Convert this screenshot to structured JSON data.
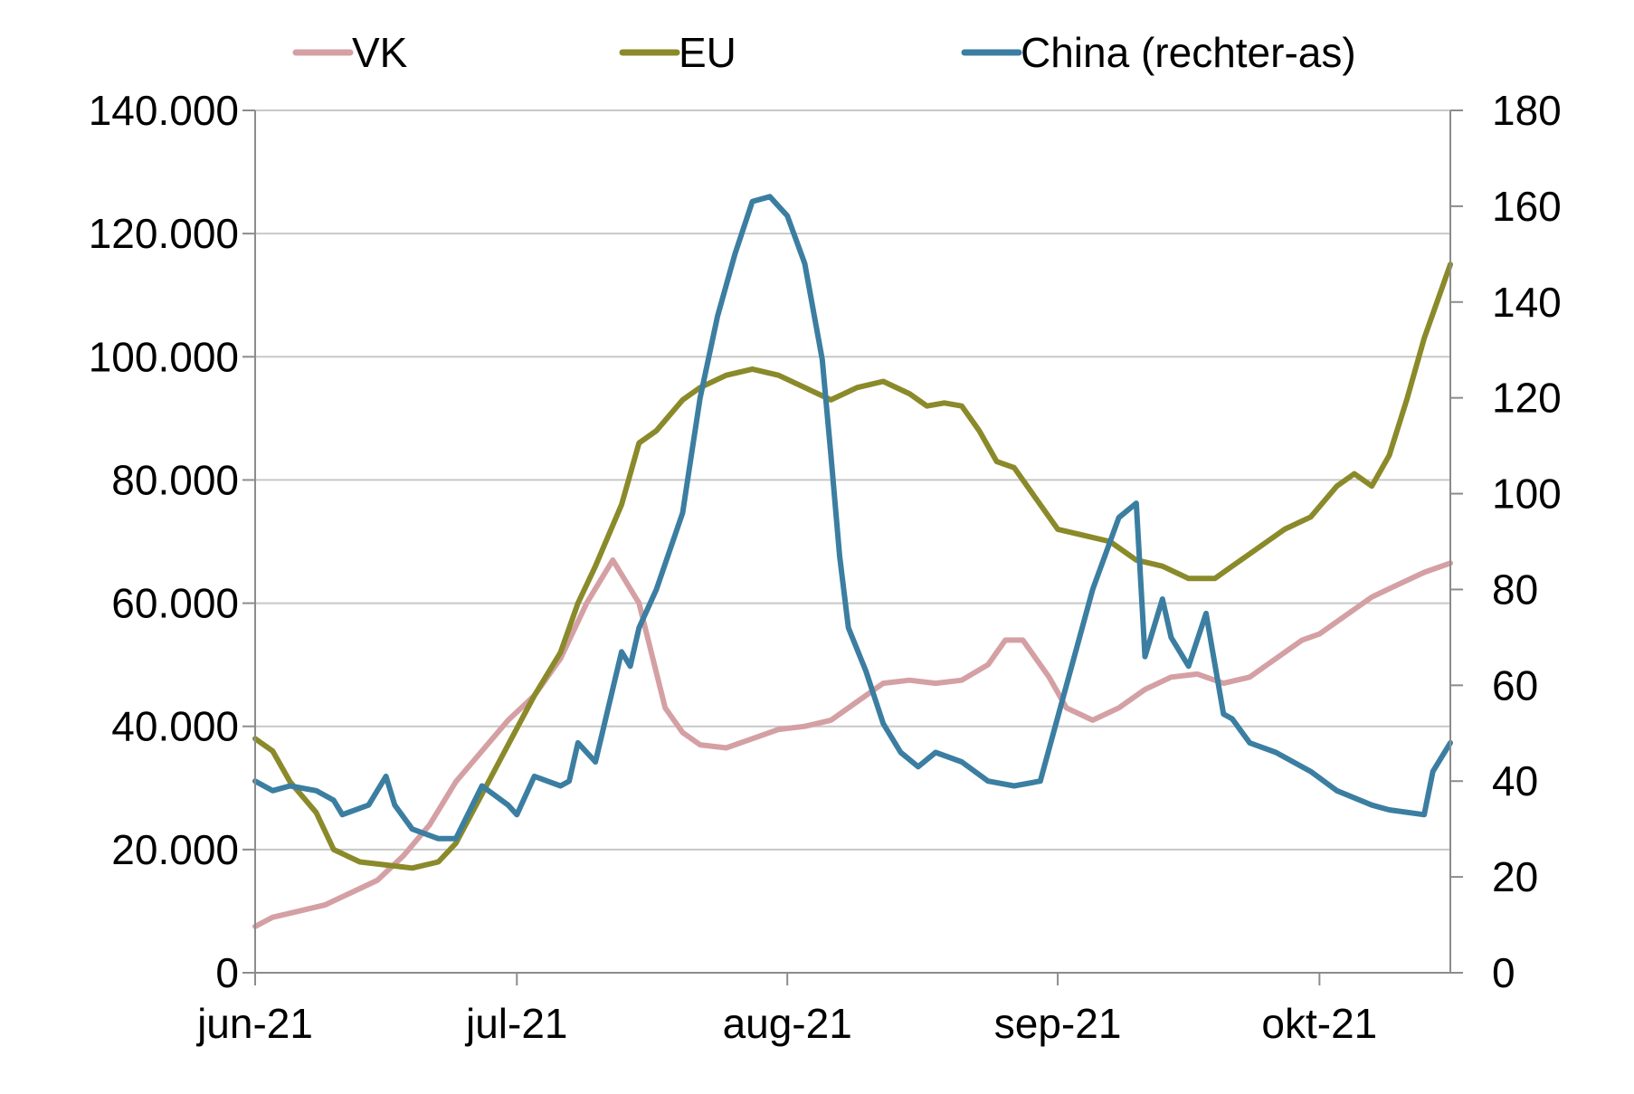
{
  "chart_data": {
    "type": "line",
    "title": "",
    "x_ticks": [
      "jun-21",
      "jul-21",
      "aug-21",
      "sep-21",
      "okt-21"
    ],
    "x_tick_dates": [
      "2021-06-01",
      "2021-07-01",
      "2021-08-01",
      "2021-09-01",
      "2021-10-01"
    ],
    "x_range": [
      "2021-06-01",
      "2021-10-16"
    ],
    "y_left": {
      "ylim": [
        0,
        140000
      ],
      "ticks": [
        0,
        20000,
        40000,
        60000,
        80000,
        100000,
        120000,
        140000
      ],
      "tick_labels": [
        "0",
        "20.000",
        "40.000",
        "60.000",
        "80.000",
        "100.000",
        "120.000",
        "140.000"
      ]
    },
    "y_right": {
      "ylim": [
        0,
        180
      ],
      "ticks": [
        0,
        20,
        40,
        60,
        80,
        100,
        120,
        140,
        160,
        180
      ],
      "tick_labels": [
        "0",
        "20",
        "40",
        "60",
        "80",
        "100",
        "120",
        "140",
        "160",
        "180"
      ]
    },
    "grid": "horizontal",
    "legend_position": "top",
    "series": [
      {
        "name": "VK",
        "axis": "left",
        "color": "#d4a0a4",
        "x": [
          "2021-06-01",
          "2021-06-03",
          "2021-06-06",
          "2021-06-09",
          "2021-06-12",
          "2021-06-15",
          "2021-06-18",
          "2021-06-21",
          "2021-06-24",
          "2021-06-27",
          "2021-06-30",
          "2021-07-03",
          "2021-07-06",
          "2021-07-09",
          "2021-07-12",
          "2021-07-15",
          "2021-07-18",
          "2021-07-20",
          "2021-07-22",
          "2021-07-25",
          "2021-07-28",
          "2021-07-31",
          "2021-08-03",
          "2021-08-06",
          "2021-08-09",
          "2021-08-12",
          "2021-08-15",
          "2021-08-18",
          "2021-08-21",
          "2021-08-24",
          "2021-08-26",
          "2021-08-28",
          "2021-08-31",
          "2021-09-02",
          "2021-09-05",
          "2021-09-08",
          "2021-09-11",
          "2021-09-14",
          "2021-09-17",
          "2021-09-20",
          "2021-09-23",
          "2021-09-26",
          "2021-09-29",
          "2021-10-01",
          "2021-10-04",
          "2021-10-07",
          "2021-10-10",
          "2021-10-13",
          "2021-10-16"
        ],
        "values": [
          7500,
          9000,
          10000,
          11000,
          13000,
          15000,
          19000,
          24000,
          31000,
          36000,
          41000,
          45000,
          51000,
          60000,
          67000,
          60000,
          43000,
          39000,
          37000,
          36500,
          38000,
          39500,
          40000,
          41000,
          44000,
          47000,
          47500,
          47000,
          47500,
          50000,
          54000,
          54000,
          48000,
          43000,
          41000,
          43000,
          46000,
          48000,
          48500,
          47000,
          48000,
          51000,
          54000,
          55000,
          58000,
          61000,
          63000,
          65000,
          66500
        ]
      },
      {
        "name": "EU",
        "axis": "left",
        "color": "#8a8a2a",
        "x": [
          "2021-06-01",
          "2021-06-03",
          "2021-06-05",
          "2021-06-08",
          "2021-06-10",
          "2021-06-13",
          "2021-06-16",
          "2021-06-19",
          "2021-06-22",
          "2021-06-24",
          "2021-06-27",
          "2021-06-30",
          "2021-07-03",
          "2021-07-06",
          "2021-07-08",
          "2021-07-10",
          "2021-07-13",
          "2021-07-15",
          "2021-07-17",
          "2021-07-20",
          "2021-07-22",
          "2021-07-25",
          "2021-07-28",
          "2021-07-31",
          "2021-08-03",
          "2021-08-06",
          "2021-08-09",
          "2021-08-12",
          "2021-08-15",
          "2021-08-17",
          "2021-08-19",
          "2021-08-21",
          "2021-08-23",
          "2021-08-25",
          "2021-08-27",
          "2021-08-30",
          "2021-09-01",
          "2021-09-04",
          "2021-09-07",
          "2021-09-10",
          "2021-09-13",
          "2021-09-16",
          "2021-09-19",
          "2021-09-21",
          "2021-09-24",
          "2021-09-27",
          "2021-09-30",
          "2021-10-03",
          "2021-10-05",
          "2021-10-07",
          "2021-10-09",
          "2021-10-11",
          "2021-10-13",
          "2021-10-16"
        ],
        "values": [
          38000,
          36000,
          31000,
          26000,
          20000,
          18000,
          17500,
          17000,
          18000,
          21000,
          29000,
          37000,
          45000,
          52000,
          60000,
          66000,
          76000,
          86000,
          88000,
          93000,
          95000,
          97000,
          98000,
          97000,
          95000,
          93000,
          95000,
          96000,
          94000,
          92000,
          92500,
          92000,
          88000,
          83000,
          82000,
          76000,
          72000,
          71000,
          70000,
          67000,
          66000,
          64000,
          64000,
          66000,
          69000,
          72000,
          74000,
          79000,
          81000,
          79000,
          84000,
          93000,
          103000,
          115000
        ]
      },
      {
        "name": "China (rechter-as)",
        "axis": "right",
        "color": "#3b7ea1",
        "x": [
          "2021-06-01",
          "2021-06-03",
          "2021-06-05",
          "2021-06-08",
          "2021-06-10",
          "2021-06-11",
          "2021-06-14",
          "2021-06-16",
          "2021-06-17",
          "2021-06-19",
          "2021-06-22",
          "2021-06-24",
          "2021-06-27",
          "2021-06-30",
          "2021-07-01",
          "2021-07-03",
          "2021-07-06",
          "2021-07-07",
          "2021-07-08",
          "2021-07-10",
          "2021-07-13",
          "2021-07-14",
          "2021-07-15",
          "2021-07-17",
          "2021-07-20",
          "2021-07-21",
          "2021-07-22",
          "2021-07-24",
          "2021-07-26",
          "2021-07-28",
          "2021-07-30",
          "2021-08-01",
          "2021-08-03",
          "2021-08-05",
          "2021-08-06",
          "2021-08-07",
          "2021-08-08",
          "2021-08-10",
          "2021-08-12",
          "2021-08-14",
          "2021-08-16",
          "2021-08-18",
          "2021-08-21",
          "2021-08-24",
          "2021-08-27",
          "2021-08-30",
          "2021-09-02",
          "2021-09-05",
          "2021-09-08",
          "2021-09-10",
          "2021-09-11",
          "2021-09-13",
          "2021-09-14",
          "2021-09-16",
          "2021-09-18",
          "2021-09-20",
          "2021-09-21",
          "2021-09-23",
          "2021-09-26",
          "2021-09-30",
          "2021-10-03",
          "2021-10-07",
          "2021-10-09",
          "2021-10-13",
          "2021-10-14",
          "2021-10-16"
        ],
        "values": [
          40,
          38,
          39,
          38,
          36,
          33,
          35,
          41,
          35,
          30,
          28,
          28,
          39,
          35,
          33,
          41,
          39,
          40,
          48,
          44,
          67,
          64,
          72,
          80,
          96,
          108,
          120,
          137,
          150,
          161,
          162,
          158,
          148,
          128,
          108,
          87,
          72,
          63,
          52,
          46,
          43,
          46,
          44,
          40,
          39,
          40,
          60,
          80,
          95,
          98,
          66,
          78,
          70,
          64,
          75,
          54,
          53,
          48,
          46,
          42,
          38,
          35,
          34,
          33,
          42,
          48
        ]
      }
    ]
  }
}
